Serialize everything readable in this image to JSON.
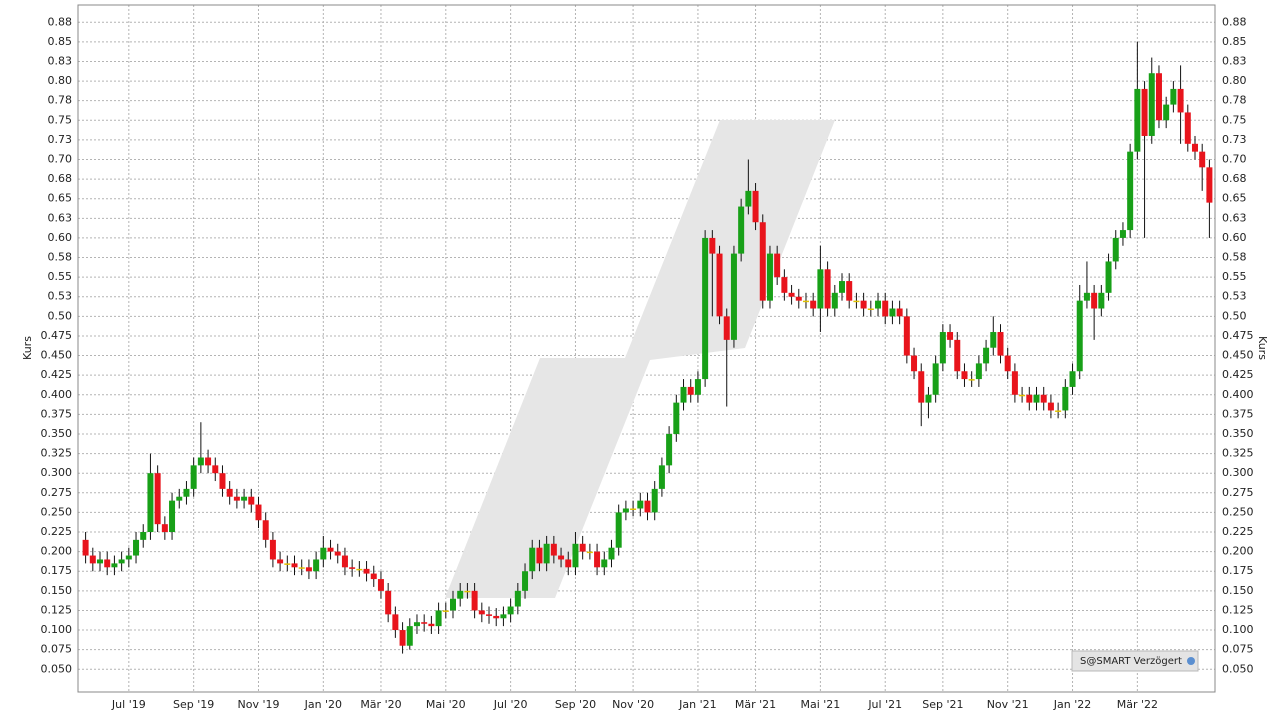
{
  "chart_data": {
    "type": "candlestick",
    "ylabel": "Kurs",
    "badge": "S@SMART Verzögert",
    "up_color": "#18a018",
    "down_color": "#e8141c",
    "flat_color": "#e0c000",
    "grid": true,
    "ylim": [
      0.021,
      0.897
    ],
    "yticks": [
      {
        "value": 0.05,
        "label": "0.050"
      },
      0.075,
      {
        "value": 0.1,
        "label": "0.100"
      },
      0.125,
      {
        "value": 0.15,
        "label": "0.150"
      },
      0.175,
      {
        "value": 0.2,
        "label": "0.200"
      },
      0.225,
      {
        "value": 0.25,
        "label": "0.250"
      },
      0.275,
      {
        "value": 0.3,
        "label": "0.300"
      },
      0.325,
      {
        "value": 0.35,
        "label": "0.350"
      },
      0.375,
      {
        "value": 0.4,
        "label": "0.400"
      },
      0.425,
      {
        "value": 0.45,
        "label": "0.450"
      },
      0.475,
      {
        "value": 0.5,
        "label": "0.50"
      },
      {
        "value": 0.525,
        "label": "0.53"
      },
      0.55,
      {
        "value": 0.575,
        "label": "0.58"
      },
      {
        "value": 0.6,
        "label": "0.60"
      },
      {
        "value": 0.625,
        "label": "0.63"
      },
      0.65,
      {
        "value": 0.675,
        "label": "0.68"
      },
      {
        "value": 0.7,
        "label": "0.70"
      },
      {
        "value": 0.725,
        "label": "0.73"
      },
      0.75,
      {
        "value": 0.775,
        "label": "0.78"
      },
      {
        "value": 0.8,
        "label": "0.80"
      },
      {
        "value": 0.825,
        "label": "0.83"
      },
      0.85,
      {
        "value": 0.875,
        "label": "0.88"
      }
    ],
    "categories": [
      null,
      null,
      null,
      null,
      null,
      null,
      "Jul '19",
      null,
      null,
      null,
      null,
      null,
      null,
      null,
      null,
      "Sep '19",
      null,
      null,
      null,
      null,
      null,
      null,
      null,
      null,
      "Nov '19",
      null,
      null,
      null,
      null,
      null,
      null,
      null,
      null,
      "Jan '20",
      null,
      null,
      null,
      null,
      null,
      null,
      null,
      "Mär '20",
      null,
      null,
      null,
      null,
      null,
      null,
      null,
      null,
      "Mai '20",
      null,
      null,
      null,
      null,
      null,
      null,
      null,
      null,
      "Jul '20",
      null,
      null,
      null,
      null,
      null,
      null,
      null,
      null,
      "Sep '20",
      null,
      null,
      null,
      null,
      null,
      null,
      null,
      "Nov '20",
      null,
      null,
      null,
      null,
      null,
      null,
      null,
      null,
      "Jan '21",
      null,
      null,
      null,
      null,
      null,
      null,
      null,
      "Mär '21",
      null,
      null,
      null,
      null,
      null,
      null,
      null,
      null,
      "Mai '21",
      null,
      null,
      null,
      null,
      null,
      null,
      null,
      null,
      "Jul '21",
      null,
      null,
      null,
      null,
      null,
      null,
      null,
      "Sep '21",
      null,
      null,
      null,
      null,
      null,
      null,
      null,
      null,
      "Nov '21",
      null,
      null,
      null,
      null,
      null,
      null,
      null,
      null,
      "Jan '22",
      null,
      null,
      null,
      null,
      null,
      null,
      null,
      null,
      "Mär '22",
      null,
      null,
      null,
      null,
      null,
      null,
      null,
      null,
      null,
      null
    ],
    "open": [
      0.215,
      0.195,
      0.185,
      0.19,
      0.18,
      0.185,
      0.19,
      0.195,
      0.215,
      0.225,
      0.3,
      0.235,
      0.225,
      0.265,
      0.27,
      0.28,
      0.31,
      0.32,
      0.31,
      0.3,
      0.28,
      0.27,
      0.265,
      0.27,
      0.26,
      0.24,
      0.215,
      0.19,
      0.185,
      0.185,
      0.18,
      0.18,
      0.175,
      0.19,
      0.205,
      0.2,
      0.195,
      0.18,
      0.178,
      0.178,
      0.172,
      0.165,
      0.15,
      0.12,
      0.1,
      0.08,
      0.105,
      0.11,
      0.108,
      0.105,
      0.125,
      0.125,
      0.14,
      0.15,
      0.15,
      0.125,
      0.12,
      0.118,
      0.115,
      0.12,
      0.13,
      0.15,
      0.175,
      0.205,
      0.185,
      0.21,
      0.195,
      0.19,
      0.18,
      0.21,
      0.2,
      0.2,
      0.18,
      0.19,
      0.205,
      0.25,
      0.255,
      0.255,
      0.265,
      0.25,
      0.28,
      0.31,
      0.35,
      0.39,
      0.41,
      0.4,
      0.42,
      0.6,
      0.58,
      0.5,
      0.47,
      0.58,
      0.64,
      0.66,
      0.62,
      0.52,
      0.58,
      0.55,
      0.53,
      0.525,
      0.52,
      0.52,
      0.51,
      0.56,
      0.51,
      0.53,
      0.545,
      0.52,
      0.52,
      0.51,
      0.51,
      0.52,
      0.5,
      0.51,
      0.5,
      0.45,
      0.43,
      0.39,
      0.4,
      0.44,
      0.48,
      0.47,
      0.43,
      0.42,
      0.42,
      0.44,
      0.46,
      0.48,
      0.45,
      0.43,
      0.4,
      0.4,
      0.39,
      0.4,
      0.39,
      0.38,
      0.38,
      0.41,
      0.43,
      0.52,
      0.53,
      0.51,
      0.53,
      0.57,
      0.6,
      0.61,
      0.71,
      0.79,
      0.73,
      0.81,
      0.75,
      0.77,
      0.79,
      0.76,
      0.72,
      0.71,
      0.69
    ],
    "high": [
      0.225,
      0.205,
      0.2,
      0.2,
      0.195,
      0.2,
      0.205,
      0.225,
      0.235,
      0.325,
      0.31,
      0.245,
      0.275,
      0.28,
      0.29,
      0.32,
      0.365,
      0.33,
      0.32,
      0.31,
      0.29,
      0.28,
      0.28,
      0.28,
      0.27,
      0.25,
      0.225,
      0.2,
      0.195,
      0.195,
      0.19,
      0.19,
      0.2,
      0.22,
      0.215,
      0.21,
      0.205,
      0.19,
      0.188,
      0.188,
      0.182,
      0.175,
      0.16,
      0.13,
      0.11,
      0.115,
      0.12,
      0.12,
      0.118,
      0.135,
      0.135,
      0.15,
      0.16,
      0.16,
      0.16,
      0.135,
      0.13,
      0.128,
      0.13,
      0.14,
      0.16,
      0.185,
      0.215,
      0.215,
      0.22,
      0.22,
      0.205,
      0.2,
      0.225,
      0.22,
      0.21,
      0.21,
      0.2,
      0.215,
      0.26,
      0.265,
      0.265,
      0.275,
      0.275,
      0.29,
      0.32,
      0.36,
      0.4,
      0.42,
      0.42,
      0.43,
      0.61,
      0.61,
      0.59,
      0.51,
      0.59,
      0.65,
      0.7,
      0.67,
      0.63,
      0.59,
      0.59,
      0.56,
      0.54,
      0.535,
      0.53,
      0.53,
      0.59,
      0.57,
      0.54,
      0.555,
      0.555,
      0.53,
      0.53,
      0.52,
      0.53,
      0.53,
      0.52,
      0.52,
      0.51,
      0.46,
      0.44,
      0.41,
      0.45,
      0.49,
      0.49,
      0.48,
      0.44,
      0.43,
      0.45,
      0.47,
      0.5,
      0.49,
      0.46,
      0.44,
      0.41,
      0.41,
      0.41,
      0.41,
      0.4,
      0.39,
      0.42,
      0.44,
      0.54,
      0.57,
      0.54,
      0.54,
      0.58,
      0.61,
      0.62,
      0.72,
      0.85,
      0.8,
      0.83,
      0.82,
      0.78,
      0.8,
      0.82,
      0.77,
      0.73,
      0.72,
      0.7
    ],
    "low": [
      0.185,
      0.175,
      0.175,
      0.17,
      0.17,
      0.175,
      0.18,
      0.185,
      0.205,
      0.215,
      0.225,
      0.215,
      0.215,
      0.255,
      0.26,
      0.27,
      0.3,
      0.3,
      0.29,
      0.27,
      0.26,
      0.255,
      0.255,
      0.25,
      0.23,
      0.205,
      0.18,
      0.175,
      0.175,
      0.17,
      0.17,
      0.165,
      0.165,
      0.18,
      0.19,
      0.185,
      0.17,
      0.168,
      0.168,
      0.162,
      0.155,
      0.14,
      0.11,
      0.09,
      0.07,
      0.075,
      0.095,
      0.098,
      0.095,
      0.095,
      0.115,
      0.115,
      0.13,
      0.14,
      0.115,
      0.11,
      0.108,
      0.105,
      0.105,
      0.11,
      0.12,
      0.14,
      0.165,
      0.175,
      0.175,
      0.185,
      0.18,
      0.17,
      0.17,
      0.19,
      0.19,
      0.17,
      0.17,
      0.18,
      0.195,
      0.24,
      0.245,
      0.245,
      0.24,
      0.24,
      0.27,
      0.3,
      0.34,
      0.38,
      0.39,
      0.39,
      0.41,
      0.5,
      0.49,
      0.385,
      0.46,
      0.57,
      0.63,
      0.61,
      0.51,
      0.51,
      0.54,
      0.52,
      0.515,
      0.51,
      0.51,
      0.5,
      0.48,
      0.5,
      0.5,
      0.52,
      0.51,
      0.51,
      0.5,
      0.5,
      0.5,
      0.49,
      0.49,
      0.49,
      0.44,
      0.42,
      0.36,
      0.37,
      0.39,
      0.43,
      0.46,
      0.42,
      0.41,
      0.41,
      0.41,
      0.43,
      0.45,
      0.44,
      0.42,
      0.39,
      0.39,
      0.38,
      0.38,
      0.38,
      0.37,
      0.37,
      0.37,
      0.4,
      0.42,
      0.51,
      0.47,
      0.5,
      0.52,
      0.56,
      0.59,
      0.6,
      0.7,
      0.6,
      0.72,
      0.74,
      0.74,
      0.76,
      0.72,
      0.71,
      0.7,
      0.66,
      0.6
    ],
    "close": [
      0.195,
      0.185,
      0.19,
      0.18,
      0.185,
      0.19,
      0.195,
      0.215,
      0.225,
      0.3,
      0.235,
      0.225,
      0.265,
      0.27,
      0.28,
      0.31,
      0.32,
      0.31,
      0.3,
      0.28,
      0.27,
      0.265,
      0.27,
      0.26,
      0.24,
      0.215,
      0.19,
      0.185,
      0.185,
      0.18,
      0.18,
      0.175,
      0.19,
      0.205,
      0.2,
      0.195,
      0.18,
      0.178,
      0.178,
      0.172,
      0.165,
      0.15,
      0.12,
      0.1,
      0.08,
      0.105,
      0.11,
      0.108,
      0.105,
      0.125,
      0.125,
      0.14,
      0.15,
      0.15,
      0.125,
      0.12,
      0.118,
      0.115,
      0.12,
      0.13,
      0.15,
      0.175,
      0.205,
      0.185,
      0.21,
      0.195,
      0.19,
      0.18,
      0.21,
      0.2,
      0.2,
      0.18,
      0.19,
      0.205,
      0.25,
      0.255,
      0.255,
      0.265,
      0.25,
      0.28,
      0.31,
      0.35,
      0.39,
      0.41,
      0.4,
      0.42,
      0.6,
      0.58,
      0.5,
      0.47,
      0.58,
      0.64,
      0.66,
      0.62,
      0.52,
      0.58,
      0.55,
      0.53,
      0.525,
      0.52,
      0.52,
      0.51,
      0.56,
      0.51,
      0.53,
      0.545,
      0.52,
      0.52,
      0.51,
      0.51,
      0.52,
      0.5,
      0.51,
      0.5,
      0.45,
      0.43,
      0.39,
      0.4,
      0.44,
      0.48,
      0.47,
      0.43,
      0.42,
      0.42,
      0.44,
      0.46,
      0.48,
      0.45,
      0.43,
      0.4,
      0.4,
      0.39,
      0.4,
      0.39,
      0.38,
      0.38,
      0.41,
      0.43,
      0.52,
      0.53,
      0.51,
      0.53,
      0.57,
      0.6,
      0.61,
      0.71,
      0.79,
      0.73,
      0.81,
      0.75,
      0.77,
      0.79,
      0.76,
      0.72,
      0.71,
      0.69,
      0.645
    ]
  }
}
